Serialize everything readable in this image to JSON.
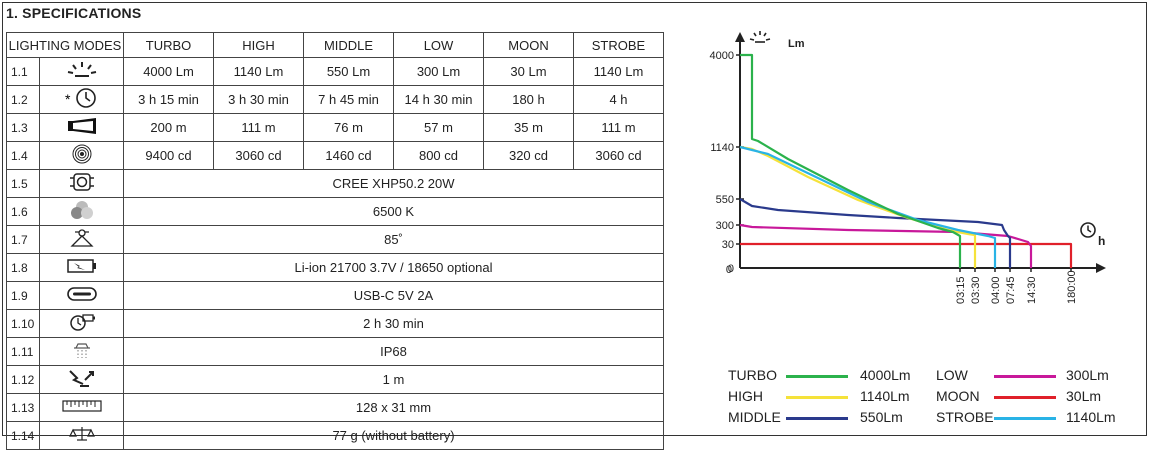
{
  "section_title": "1. SPECIFICATIONS",
  "table": {
    "header": {
      "label": "LIGHTING MODES",
      "modes": [
        "TURBO",
        "HIGH",
        "MIDDLE",
        "LOW",
        "MOON",
        "STROBE"
      ]
    },
    "mode_rows": [
      {
        "index": "1.1",
        "icon": "lumen-sun-icon",
        "values": [
          "4000 Lm",
          "1140 Lm",
          "550 Lm",
          "300 Lm",
          "30 Lm",
          "1140 Lm"
        ]
      },
      {
        "index": "1.2",
        "icon": "runtime-clock-icon",
        "values": [
          "3 h 15 min",
          "3 h 30 min",
          "7 h 45 min",
          "14 h 30 min",
          "180 h",
          "4 h"
        ]
      },
      {
        "index": "1.3",
        "icon": "beam-distance-icon",
        "values": [
          "200 m",
          "111 m",
          "76 m",
          "57 m",
          "35 m",
          "111 m"
        ]
      },
      {
        "index": "1.4",
        "icon": "intensity-target-icon",
        "values": [
          "9400 cd",
          "3060 cd",
          "1460 cd",
          "800 cd",
          "320 cd",
          "3060 cd"
        ]
      }
    ],
    "spec_rows": [
      {
        "index": "1.5",
        "icon": "led-chip-icon",
        "value": "CREE XHP50.2 20W"
      },
      {
        "index": "1.6",
        "icon": "color-temperature-icon",
        "value": "6500 K"
      },
      {
        "index": "1.7",
        "icon": "beam-angle-icon",
        "value": "85˚"
      },
      {
        "index": "1.8",
        "icon": "battery-icon",
        "value": "Li-ion 21700 3.7V / 18650 optional"
      },
      {
        "index": "1.9",
        "icon": "usb-c-icon",
        "value": "USB-C 5V 2A"
      },
      {
        "index": "1.10",
        "icon": "charge-time-icon",
        "value": "2 h 30 min"
      },
      {
        "index": "1.11",
        "icon": "waterproof-icon",
        "value": "IP68"
      },
      {
        "index": "1.12",
        "icon": "impact-drop-icon",
        "value": "1 m"
      },
      {
        "index": "1.13",
        "icon": "ruler-icon",
        "value": "128 x 31 mm"
      },
      {
        "index": "1.14",
        "icon": "scale-weight-icon",
        "value": "77 g (without battery)"
      }
    ]
  },
  "chart_data": {
    "type": "line",
    "title": "",
    "xlabel": "h",
    "ylabel": "Lm",
    "x_ticks": [
      "03:15",
      "03:30",
      "04:00",
      "07:45",
      "14:30",
      "180:00"
    ],
    "y_ticks": [
      "4000",
      "1140",
      "550",
      "300",
      "30",
      "0"
    ],
    "origin_label": "0",
    "series": [
      {
        "name": "TURBO",
        "color": "#2bb24c",
        "end_time": "03:15",
        "start_lm": 4000
      },
      {
        "name": "HIGH",
        "color": "#f5e23a",
        "end_time": "03:30",
        "start_lm": 1140
      },
      {
        "name": "MIDDLE",
        "color": "#2a3a8c",
        "end_time": "07:45",
        "start_lm": 550
      },
      {
        "name": "LOW",
        "color": "#c8189a",
        "end_time": "14:30",
        "start_lm": 300
      },
      {
        "name": "MOON",
        "color": "#e0202a",
        "end_time": "180:00",
        "start_lm": 30
      },
      {
        "name": "STROBE",
        "color": "#29b3e6",
        "end_time": "04:00",
        "start_lm": 1140
      }
    ]
  },
  "legend": [
    {
      "name": "TURBO",
      "value": "4000Lm",
      "color": "#2bb24c"
    },
    {
      "name": "HIGH",
      "value": "1140Lm",
      "color": "#f5e23a"
    },
    {
      "name": "MIDDLE",
      "value": "550Lm",
      "color": "#2a3a8c"
    },
    {
      "name": "LOW",
      "value": "300Lm",
      "color": "#c8189a"
    },
    {
      "name": "MOON",
      "value": "30Lm",
      "color": "#e0202a"
    },
    {
      "name": "STROBE",
      "value": "1140Lm",
      "color": "#29b3e6"
    }
  ]
}
